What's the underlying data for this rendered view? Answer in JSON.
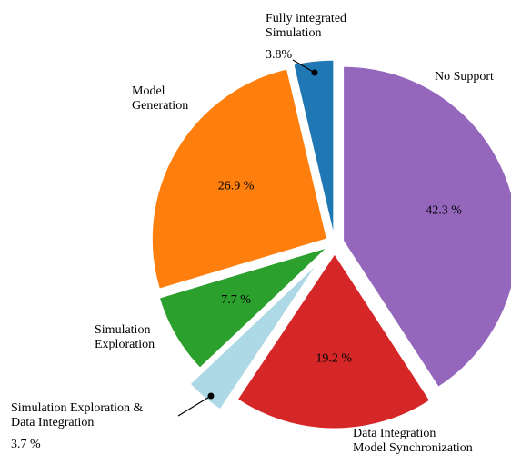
{
  "chart_data": {
    "type": "pie",
    "categories": [
      [
        "No Support"
      ],
      [
        "Data Integration",
        "Model Synchronization"
      ],
      [
        "Simulation Exploration &",
        "Data Integration"
      ],
      [
        "Simulation",
        "Exploration"
      ],
      [
        "Model",
        "Generation"
      ],
      [
        "Fully integrated",
        "Simulation"
      ]
    ],
    "values": [
      42.3,
      19.2,
      3.7,
      7.7,
      26.9,
      3.8
    ],
    "value_labels": [
      "42.3 %",
      "19.2 %",
      "3.7 %",
      "7.7 %",
      "26.9 %",
      "3.8%"
    ],
    "colors": [
      "#9467bd",
      "#d62728",
      "#add8e6",
      "#2ca02c",
      "#ff7f0e",
      "#1f77b4"
    ]
  }
}
